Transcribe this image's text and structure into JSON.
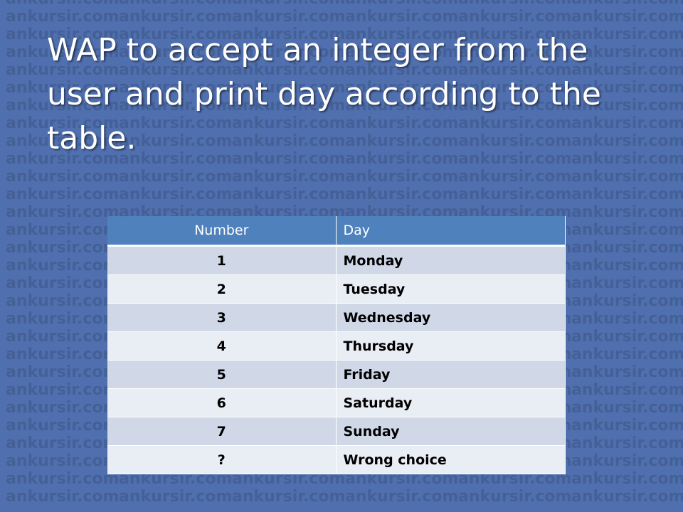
{
  "slide": {
    "title": "WAP to accept an integer from the user and print day according to the table."
  },
  "watermark": {
    "text": "ankursir.com"
  },
  "table": {
    "headers": {
      "number": "Number",
      "day": "Day"
    },
    "rows": [
      {
        "number": "1",
        "day": "Monday"
      },
      {
        "number": "2",
        "day": "Tuesday"
      },
      {
        "number": "3",
        "day": "Wednesday"
      },
      {
        "number": "4",
        "day": "Thursday"
      },
      {
        "number": "5",
        "day": "Friday"
      },
      {
        "number": "6",
        "day": "Saturday"
      },
      {
        "number": "7",
        "day": "Sunday"
      },
      {
        "number": "?",
        "day": "Wrong choice"
      }
    ]
  },
  "colors": {
    "background": "#4f6fae",
    "header": "#4f81bd",
    "row_band_1": "#d0d8e8",
    "row_band_2": "#e9edf4"
  }
}
